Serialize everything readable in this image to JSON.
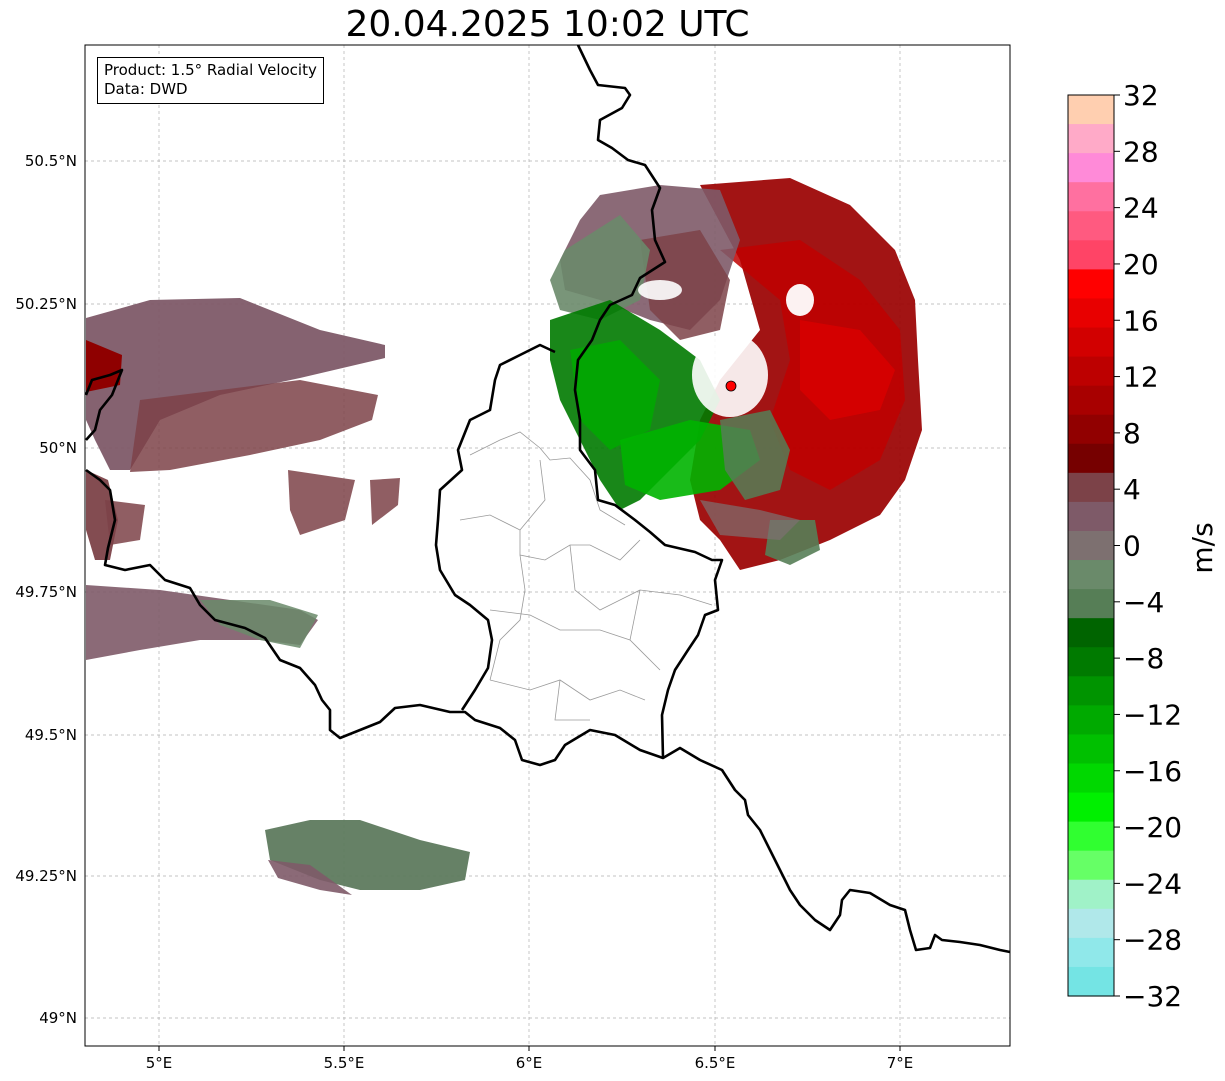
{
  "title": "20.04.2025 10:02 UTC",
  "info": {
    "product": "Product: 1.5° Radial Velocity",
    "data": "Data: DWD"
  },
  "axes": {
    "x_ticks": [
      "5°E",
      "5.5°E",
      "6°E",
      "6.5°E",
      "7°E"
    ],
    "y_ticks": [
      "50.5°N",
      "50.25°N",
      "50°N",
      "49.75°N",
      "49.5°N",
      "49.25°N",
      "49°N"
    ]
  },
  "colorbar": {
    "unit": "m/s",
    "tick_labels": [
      "32",
      "28",
      "24",
      "20",
      "16",
      "12",
      "8",
      "4",
      "0",
      "−4",
      "−8",
      "−12",
      "−16",
      "−20",
      "−24",
      "−28",
      "−32"
    ],
    "colors_top_to_bottom": [
      "#ffcfb0",
      "#ffaac8",
      "#ff8ad8",
      "#ff70a0",
      "#ff5a80",
      "#ff4466",
      "#ff0000",
      "#e80000",
      "#d20000",
      "#bd0000",
      "#a80000",
      "#910000",
      "#760000",
      "#7c4248",
      "#7e5a68",
      "#7d7070",
      "#6a8a6a",
      "#567e56",
      "#006400",
      "#007a00",
      "#009400",
      "#00aa00",
      "#00c000",
      "#00d800",
      "#00f000",
      "#30ff30",
      "#66ff66",
      "#a0f2c8",
      "#b0e8ea",
      "#90e8ea",
      "#74e4e4"
    ]
  },
  "radar_site": {
    "color": "#ff0000"
  }
}
